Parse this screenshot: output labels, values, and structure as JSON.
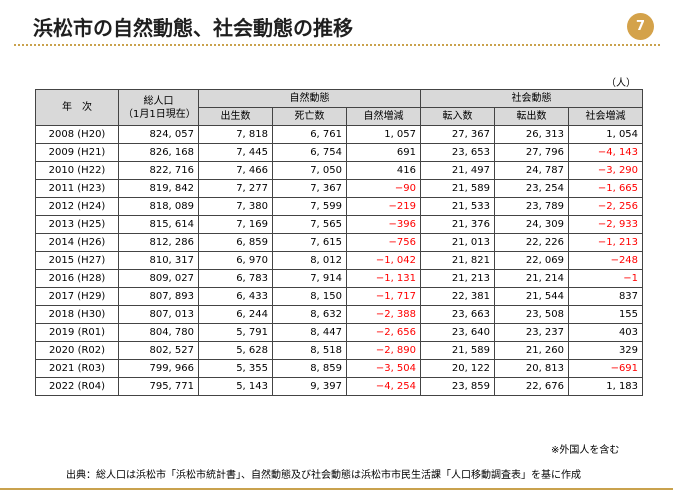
{
  "header": {
    "title": "浜松市の自然動態、社会動態の推移",
    "page_number": "7"
  },
  "unit": "（人）",
  "table": {
    "col_year": "年　次",
    "col_total": [
      "総人口",
      "（1月1日現在）"
    ],
    "group_natural": "自然動態",
    "group_social": "社会動態",
    "sub_headers": [
      "出生数",
      "死亡数",
      "自然増減",
      "転入数",
      "転出数",
      "社会増減"
    ],
    "rows": [
      [
        "2008 (H20)",
        "824, 057",
        "7, 818",
        "6, 761",
        "1, 057",
        "27, 367",
        "26, 313",
        "1, 054"
      ],
      [
        "2009 (H21)",
        "826, 168",
        "7, 445",
        "6, 754",
        "691",
        "23, 653",
        "27, 796",
        "−4, 143"
      ],
      [
        "2010 (H22)",
        "822, 716",
        "7, 466",
        "7, 050",
        "416",
        "21, 497",
        "24, 787",
        "−3, 290"
      ],
      [
        "2011 (H23)",
        "819, 842",
        "7, 277",
        "7, 367",
        "−90",
        "21, 589",
        "23, 254",
        "−1, 665"
      ],
      [
        "2012 (H24)",
        "818, 089",
        "7, 380",
        "7, 599",
        "−219",
        "21, 533",
        "23, 789",
        "−2, 256"
      ],
      [
        "2013 (H25)",
        "815, 614",
        "7, 169",
        "7, 565",
        "−396",
        "21, 376",
        "24, 309",
        "−2, 933"
      ],
      [
        "2014 (H26)",
        "812, 286",
        "6, 859",
        "7, 615",
        "−756",
        "21, 013",
        "22, 226",
        "−1, 213"
      ],
      [
        "2015 (H27)",
        "810, 317",
        "6, 970",
        "8, 012",
        "−1, 042",
        "21, 821",
        "22, 069",
        "−248"
      ],
      [
        "2016 (H28)",
        "809, 027",
        "6, 783",
        "7, 914",
        "−1, 131",
        "21, 213",
        "21, 214",
        "−1"
      ],
      [
        "2017 (H29)",
        "807, 893",
        "6, 433",
        "8, 150",
        "−1, 717",
        "22, 381",
        "21, 544",
        "837"
      ],
      [
        "2018 (H30)",
        "807, 013",
        "6, 244",
        "8, 632",
        "−2, 388",
        "23, 663",
        "23, 508",
        "155"
      ],
      [
        "2019 (R01)",
        "804, 780",
        "5, 791",
        "8, 447",
        "−2, 656",
        "23, 640",
        "23, 237",
        "403"
      ],
      [
        "2020 (R02)",
        "802, 527",
        "5, 628",
        "8, 518",
        "−2, 890",
        "21, 589",
        "21, 260",
        "329"
      ],
      [
        "2021 (R03)",
        "799, 966",
        "5, 355",
        "8, 859",
        "−3, 504",
        "20, 122",
        "20, 813",
        "−691"
      ],
      [
        "2022 (R04)",
        "795, 771",
        "5, 143",
        "9, 397",
        "−4, 254",
        "23, 859",
        "22, 676",
        "1, 183"
      ]
    ]
  },
  "note": "※外国人を含む",
  "source": "出典：総人口は浜松市「浜松市統計書」、自然動態及び社会動態は浜松市市民生活課「人口移動調査表」を基に作成",
  "colors": {
    "accent": "#d4a24a",
    "negative": "#ff0000",
    "header_bg": "#d9d9d9"
  }
}
